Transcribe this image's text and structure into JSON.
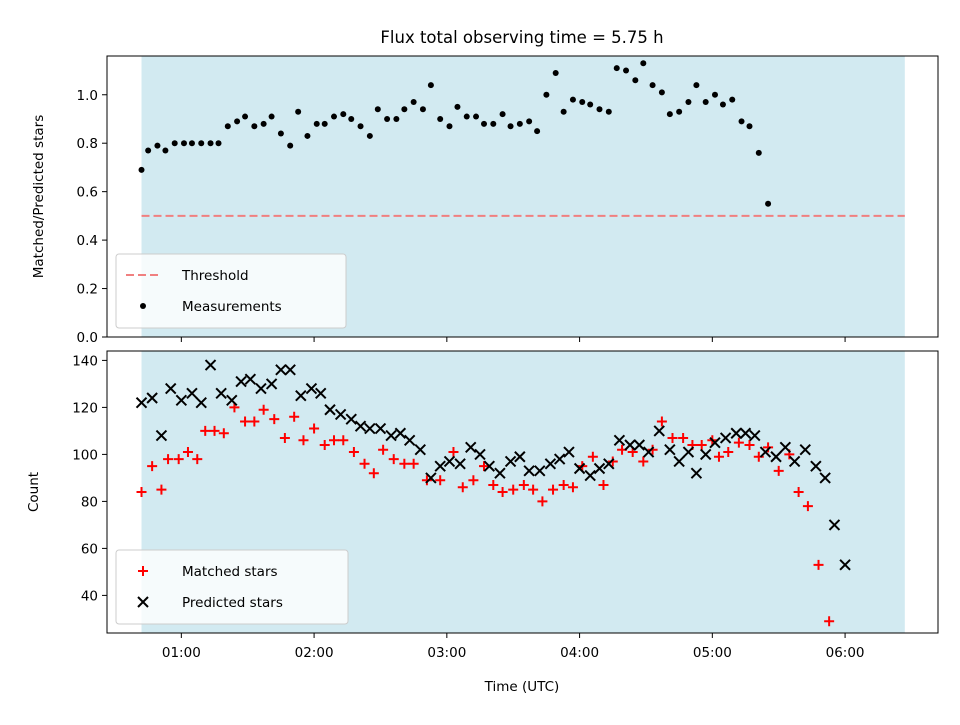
{
  "chart_data": {
    "type": "scatter",
    "title": "Flux total observing time = 5.75 h",
    "xlabel": "Time (UTC)",
    "x_unit": "hours UTC",
    "xlim": [
      0.44,
      6.7
    ],
    "x_tick_values": [
      1,
      2,
      3,
      4,
      5,
      6
    ],
    "x_tick_labels": [
      "01:00",
      "02:00",
      "03:00",
      "04:00",
      "05:00",
      "06:00"
    ],
    "shaded_span": {
      "x": [
        0.7,
        6.45
      ],
      "color": "#add8e6"
    },
    "panels": [
      {
        "ylabel": "Matched/Predicted stars",
        "ylim": [
          0,
          1.16
        ],
        "y_ticks": [
          0.0,
          0.2,
          0.4,
          0.6,
          0.8,
          1.0
        ],
        "y_tick_labels": [
          "0.0",
          "0.2",
          "0.4",
          "0.6",
          "0.8",
          "1.0"
        ],
        "legend_position": "lower-left",
        "threshold": {
          "name": "Threshold",
          "value": 0.5,
          "color": "#f08080"
        },
        "series": [
          {
            "name": "Measurements",
            "marker": "dot",
            "color": "#000000",
            "points": [
              [
                0.7,
                0.69
              ],
              [
                0.75,
                0.77
              ],
              [
                0.82,
                0.79
              ],
              [
                0.88,
                0.77
              ],
              [
                0.95,
                0.8
              ],
              [
                1.02,
                0.8
              ],
              [
                1.08,
                0.8
              ],
              [
                1.15,
                0.8
              ],
              [
                1.22,
                0.8
              ],
              [
                1.28,
                0.8
              ],
              [
                1.35,
                0.87
              ],
              [
                1.42,
                0.89
              ],
              [
                1.48,
                0.91
              ],
              [
                1.55,
                0.87
              ],
              [
                1.62,
                0.88
              ],
              [
                1.68,
                0.91
              ],
              [
                1.75,
                0.84
              ],
              [
                1.82,
                0.79
              ],
              [
                1.88,
                0.93
              ],
              [
                1.95,
                0.83
              ],
              [
                2.02,
                0.88
              ],
              [
                2.08,
                0.88
              ],
              [
                2.15,
                0.91
              ],
              [
                2.22,
                0.92
              ],
              [
                2.28,
                0.9
              ],
              [
                2.35,
                0.87
              ],
              [
                2.42,
                0.83
              ],
              [
                2.48,
                0.94
              ],
              [
                2.55,
                0.9
              ],
              [
                2.62,
                0.9
              ],
              [
                2.68,
                0.94
              ],
              [
                2.75,
                0.97
              ],
              [
                2.82,
                0.94
              ],
              [
                2.88,
                1.04
              ],
              [
                2.95,
                0.9
              ],
              [
                3.02,
                0.87
              ],
              [
                3.08,
                0.95
              ],
              [
                3.15,
                0.91
              ],
              [
                3.22,
                0.91
              ],
              [
                3.28,
                0.88
              ],
              [
                3.35,
                0.88
              ],
              [
                3.42,
                0.92
              ],
              [
                3.48,
                0.87
              ],
              [
                3.55,
                0.88
              ],
              [
                3.62,
                0.89
              ],
              [
                3.68,
                0.85
              ],
              [
                3.75,
                1.0
              ],
              [
                3.82,
                1.09
              ],
              [
                3.88,
                0.93
              ],
              [
                3.95,
                0.98
              ],
              [
                4.02,
                0.97
              ],
              [
                4.08,
                0.96
              ],
              [
                4.15,
                0.94
              ],
              [
                4.22,
                0.93
              ],
              [
                4.28,
                1.11
              ],
              [
                4.35,
                1.1
              ],
              [
                4.42,
                1.06
              ],
              [
                4.48,
                1.13
              ],
              [
                4.55,
                1.04
              ],
              [
                4.62,
                1.01
              ],
              [
                4.68,
                0.92
              ],
              [
                4.75,
                0.93
              ],
              [
                4.82,
                0.97
              ],
              [
                4.88,
                1.04
              ],
              [
                4.95,
                0.97
              ],
              [
                5.02,
                1.0
              ],
              [
                5.08,
                0.96
              ],
              [
                5.15,
                0.98
              ],
              [
                5.22,
                0.89
              ],
              [
                5.28,
                0.87
              ],
              [
                5.35,
                0.76
              ],
              [
                5.42,
                0.55
              ]
            ]
          }
        ]
      },
      {
        "ylabel": "Count",
        "ylim": [
          24,
          144
        ],
        "y_ticks": [
          40,
          60,
          80,
          100,
          120,
          140
        ],
        "y_tick_labels": [
          "40",
          "60",
          "80",
          "100",
          "120",
          "140"
        ],
        "legend_position": "lower-left",
        "series": [
          {
            "name": "Matched stars",
            "marker": "plus",
            "color": "#ff0000",
            "points": [
              [
                0.7,
                84
              ],
              [
                0.78,
                95
              ],
              [
                0.85,
                85
              ],
              [
                0.9,
                98
              ],
              [
                0.98,
                98
              ],
              [
                1.05,
                101
              ],
              [
                1.12,
                98
              ],
              [
                1.18,
                110
              ],
              [
                1.25,
                110
              ],
              [
                1.32,
                109
              ],
              [
                1.4,
                120
              ],
              [
                1.48,
                114
              ],
              [
                1.55,
                114
              ],
              [
                1.62,
                119
              ],
              [
                1.7,
                115
              ],
              [
                1.78,
                107
              ],
              [
                1.85,
                116
              ],
              [
                1.92,
                106
              ],
              [
                2.0,
                111
              ],
              [
                2.08,
                104
              ],
              [
                2.15,
                106
              ],
              [
                2.22,
                106
              ],
              [
                2.3,
                101
              ],
              [
                2.38,
                96
              ],
              [
                2.45,
                92
              ],
              [
                2.52,
                102
              ],
              [
                2.6,
                98
              ],
              [
                2.68,
                96
              ],
              [
                2.75,
                96
              ],
              [
                2.85,
                89
              ],
              [
                2.95,
                89
              ],
              [
                3.05,
                101
              ],
              [
                3.12,
                86
              ],
              [
                3.2,
                89
              ],
              [
                3.28,
                95
              ],
              [
                3.35,
                87
              ],
              [
                3.42,
                84
              ],
              [
                3.5,
                85
              ],
              [
                3.58,
                87
              ],
              [
                3.65,
                85
              ],
              [
                3.72,
                80
              ],
              [
                3.8,
                85
              ],
              [
                3.88,
                87
              ],
              [
                3.95,
                86
              ],
              [
                4.02,
                95
              ],
              [
                4.1,
                99
              ],
              [
                4.18,
                87
              ],
              [
                4.25,
                97
              ],
              [
                4.32,
                102
              ],
              [
                4.4,
                101
              ],
              [
                4.48,
                97
              ],
              [
                4.55,
                102
              ],
              [
                4.62,
                114
              ],
              [
                4.7,
                107
              ],
              [
                4.78,
                107
              ],
              [
                4.85,
                104
              ],
              [
                4.92,
                104
              ],
              [
                5.0,
                106
              ],
              [
                5.05,
                99
              ],
              [
                5.12,
                101
              ],
              [
                5.2,
                105
              ],
              [
                5.28,
                104
              ],
              [
                5.35,
                99
              ],
              [
                5.42,
                103
              ],
              [
                5.5,
                93
              ],
              [
                5.58,
                100
              ],
              [
                5.65,
                84
              ],
              [
                5.72,
                78
              ],
              [
                5.8,
                53
              ],
              [
                5.88,
                29
              ]
            ]
          },
          {
            "name": "Predicted stars",
            "marker": "x",
            "color": "#000000",
            "points": [
              [
                0.7,
                122
              ],
              [
                0.78,
                124
              ],
              [
                0.85,
                108
              ],
              [
                0.92,
                128
              ],
              [
                1.0,
                123
              ],
              [
                1.08,
                126
              ],
              [
                1.15,
                122
              ],
              [
                1.22,
                138
              ],
              [
                1.3,
                126
              ],
              [
                1.38,
                123
              ],
              [
                1.45,
                131
              ],
              [
                1.52,
                132
              ],
              [
                1.6,
                128
              ],
              [
                1.68,
                130
              ],
              [
                1.75,
                136
              ],
              [
                1.82,
                136
              ],
              [
                1.9,
                125
              ],
              [
                1.98,
                128
              ],
              [
                2.05,
                126
              ],
              [
                2.12,
                119
              ],
              [
                2.2,
                117
              ],
              [
                2.28,
                115
              ],
              [
                2.35,
                112
              ],
              [
                2.42,
                111
              ],
              [
                2.5,
                111
              ],
              [
                2.58,
                108
              ],
              [
                2.65,
                109
              ],
              [
                2.72,
                106
              ],
              [
                2.8,
                102
              ],
              [
                2.88,
                90
              ],
              [
                2.95,
                95
              ],
              [
                3.02,
                97
              ],
              [
                3.1,
                96
              ],
              [
                3.18,
                103
              ],
              [
                3.25,
                100
              ],
              [
                3.32,
                95
              ],
              [
                3.4,
                92
              ],
              [
                3.48,
                97
              ],
              [
                3.55,
                99
              ],
              [
                3.62,
                93
              ],
              [
                3.7,
                93
              ],
              [
                3.78,
                96
              ],
              [
                3.85,
                98
              ],
              [
                3.92,
                101
              ],
              [
                4.0,
                94
              ],
              [
                4.08,
                91
              ],
              [
                4.15,
                94
              ],
              [
                4.22,
                96
              ],
              [
                4.3,
                106
              ],
              [
                4.38,
                104
              ],
              [
                4.45,
                104
              ],
              [
                4.52,
                101
              ],
              [
                4.6,
                110
              ],
              [
                4.68,
                102
              ],
              [
                4.75,
                97
              ],
              [
                4.82,
                101
              ],
              [
                4.88,
                92
              ],
              [
                4.95,
                100
              ],
              [
                5.02,
                105
              ],
              [
                5.1,
                107
              ],
              [
                5.18,
                109
              ],
              [
                5.25,
                109
              ],
              [
                5.32,
                108
              ],
              [
                5.4,
                101
              ],
              [
                5.48,
                99
              ],
              [
                5.55,
                103
              ],
              [
                5.62,
                97
              ],
              [
                5.7,
                102
              ],
              [
                5.78,
                95
              ],
              [
                5.85,
                90
              ],
              [
                5.92,
                70
              ],
              [
                6.0,
                53
              ]
            ]
          }
        ]
      }
    ]
  }
}
